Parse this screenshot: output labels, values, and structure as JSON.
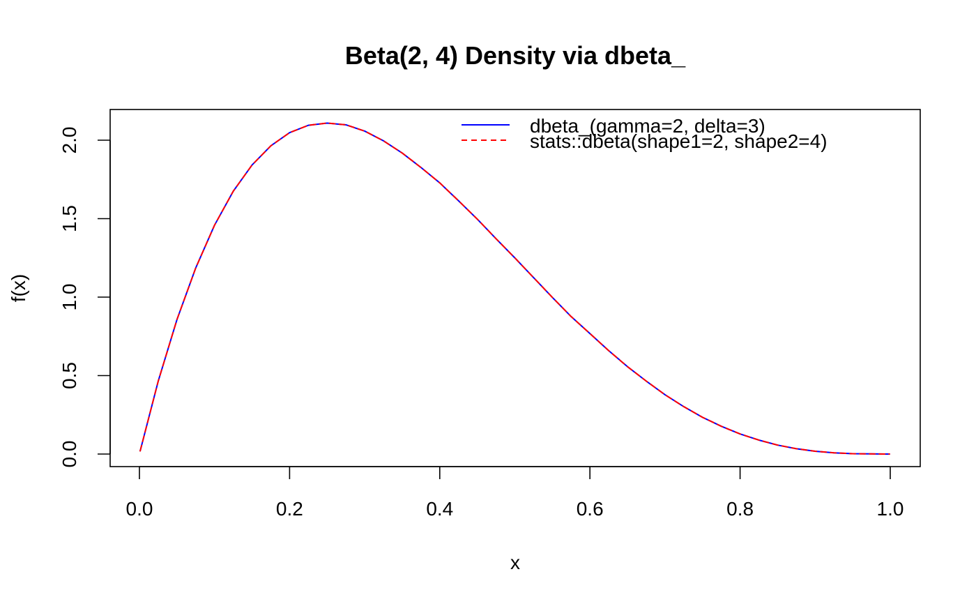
{
  "chart_data": {
    "type": "line",
    "title": "Beta(2, 4) Density via dbeta_",
    "xlabel": "x",
    "ylabel": "f(x)",
    "xlim": [
      0.0,
      1.0
    ],
    "ylim": [
      0.0,
      2.11
    ],
    "x_ticks": [
      "0.0",
      "0.2",
      "0.4",
      "0.6",
      "0.8",
      "1.0"
    ],
    "y_ticks": [
      "0.0",
      "0.5",
      "1.0",
      "1.5",
      "2.0"
    ],
    "grid": false,
    "legend_position": "top-right",
    "x": [
      0.001,
      0.025,
      0.05,
      0.075,
      0.1,
      0.125,
      0.15,
      0.175,
      0.2,
      0.225,
      0.25,
      0.275,
      0.3,
      0.325,
      0.35,
      0.375,
      0.4,
      0.425,
      0.45,
      0.475,
      0.5,
      0.525,
      0.55,
      0.575,
      0.6,
      0.625,
      0.65,
      0.675,
      0.7,
      0.725,
      0.75,
      0.775,
      0.8,
      0.825,
      0.85,
      0.875,
      0.9,
      0.925,
      0.95,
      0.975,
      0.999
    ],
    "series": [
      {
        "name": "dbeta_(gamma=2, delta=3)",
        "color": "#0000ff",
        "line_style": "solid",
        "values": [
          0.02,
          0.464,
          0.857,
          1.186,
          1.458,
          1.675,
          1.842,
          1.964,
          2.048,
          2.095,
          2.109,
          2.098,
          2.058,
          1.996,
          1.918,
          1.826,
          1.728,
          1.614,
          1.497,
          1.372,
          1.25,
          1.124,
          0.998,
          0.876,
          0.768,
          0.659,
          0.557,
          0.465,
          0.378,
          0.302,
          0.234,
          0.177,
          0.128,
          0.089,
          0.057,
          0.034,
          0.018,
          0.008,
          0.002,
          0.001,
          0.0
        ]
      },
      {
        "name": "stats::dbeta(shape1=2, shape2=4)",
        "color": "#ff0000",
        "line_style": "dashed",
        "values": [
          0.02,
          0.464,
          0.857,
          1.186,
          1.458,
          1.675,
          1.842,
          1.964,
          2.048,
          2.095,
          2.109,
          2.098,
          2.058,
          1.996,
          1.918,
          1.826,
          1.728,
          1.614,
          1.497,
          1.372,
          1.25,
          1.124,
          0.998,
          0.876,
          0.768,
          0.659,
          0.557,
          0.465,
          0.378,
          0.302,
          0.234,
          0.177,
          0.128,
          0.089,
          0.057,
          0.034,
          0.018,
          0.008,
          0.002,
          0.001,
          0.0
        ]
      }
    ]
  }
}
